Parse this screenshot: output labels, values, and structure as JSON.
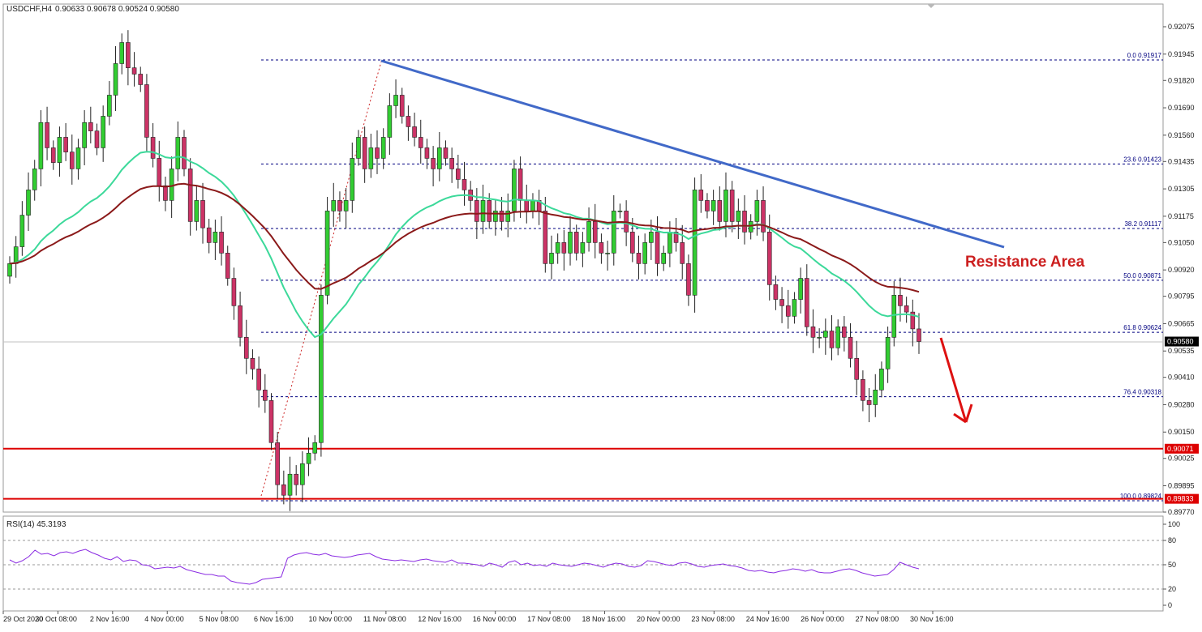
{
  "header": {
    "symbol": "USDCHF,H4",
    "ohlc": "0.90633 0.90678 0.90524 0.90580"
  },
  "annotation": {
    "resistance_label": "Resistance Area"
  },
  "colors": {
    "bull": "#32cd32",
    "bear": "#cc3366",
    "ema_fast": "#3cd99a",
    "ema_slow": "#8b1a1a",
    "trendline": "#4169c8",
    "support": "#dd0000",
    "fib": "#000080",
    "arrow": "#dd1111",
    "rsi": "#8a2be2",
    "text": "#1a1a1a",
    "resistance_text": "#cc1f1f"
  },
  "chart_data": [
    {
      "type": "candlestick",
      "symbol": "USDCHF",
      "timeframe": "H4",
      "ylim": [
        0.8977,
        0.9214
      ],
      "price_ticks": [
        "0.92075",
        "0.91945",
        "0.91820",
        "0.91690",
        "0.91560",
        "0.91435",
        "0.91305",
        "0.91175",
        "0.91050",
        "0.90920",
        "0.90795",
        "0.90665",
        "0.90535",
        "0.90410",
        "0.90280",
        "0.90150",
        "0.90025",
        "0.89895",
        "0.89770"
      ],
      "x_labels": [
        "29 Oct 2020",
        "30 Oct 08:00",
        "2 Nov 16:00",
        "4 Nov 00:00",
        "5 Nov 08:00",
        "6 Nov 16:00",
        "10 Nov 00:00",
        "11 Nov 08:00",
        "12 Nov 16:00",
        "16 Nov 00:00",
        "17 Nov 08:00",
        "18 Nov 16:00",
        "20 Nov 00:00",
        "23 Nov 08:00",
        "24 Nov 16:00",
        "26 Nov 00:00",
        "27 Nov 08:00",
        "30 Nov 16:00"
      ],
      "current_price": "0.90580",
      "support_levels": [
        {
          "label": "0.90071",
          "value": 0.90071
        },
        {
          "label": "0.89833",
          "value": 0.89833
        }
      ],
      "fibonacci": [
        {
          "label": "0.0 0.91917",
          "value": 0.91917
        },
        {
          "label": "23.6 0.91423",
          "value": 0.91423
        },
        {
          "label": "38.2 0.91117",
          "value": 0.91117
        },
        {
          "label": "50.0 0.90871",
          "value": 0.90871
        },
        {
          "label": "61.8 0.90624",
          "value": 0.90624
        },
        {
          "label": "76.4 0.90318",
          "value": 0.90318
        },
        {
          "label": "100.0 0.89824",
          "value": 0.89824
        }
      ],
      "trendline": {
        "from": [
          0.91917
        ],
        "to": [
          0.9104
        ]
      },
      "series": [
        {
          "name": "",
          "type": "candles",
          "closes": [
            0.9095,
            0.9103,
            0.9118,
            0.913,
            0.914,
            0.9162,
            0.915,
            0.9143,
            0.9155,
            0.9148,
            0.914,
            0.915,
            0.9162,
            0.9158,
            0.915,
            0.9165,
            0.9175,
            0.919,
            0.92,
            0.9188,
            0.9185,
            0.918,
            0.9155,
            0.9145,
            0.9132,
            0.9125,
            0.914,
            0.9155,
            0.914,
            0.9115,
            0.9125,
            0.9112,
            0.9105,
            0.911,
            0.91,
            0.9088,
            0.9075,
            0.906,
            0.905,
            0.9045,
            0.9035,
            0.903,
            0.901,
            0.899,
            0.8985,
            0.8995,
            0.899,
            0.9,
            0.9005,
            0.901,
            0.908,
            0.912,
            0.9125,
            0.912,
            0.9125,
            0.9145,
            0.9155,
            0.914,
            0.915,
            0.9145,
            0.9155,
            0.917,
            0.9175,
            0.9165,
            0.916,
            0.9155,
            0.915,
            0.9145,
            0.914,
            0.915,
            0.9145,
            0.914,
            0.9135,
            0.913,
            0.9125,
            0.9115,
            0.9125,
            0.9115,
            0.912,
            0.9115,
            0.912,
            0.914,
            0.9125,
            0.912,
            0.9125,
            0.912,
            0.9095,
            0.91,
            0.9105,
            0.91,
            0.911,
            0.91,
            0.9105,
            0.9115,
            0.9105,
            0.91,
            0.91,
            0.912,
            0.912,
            0.911,
            0.91,
            0.9095,
            0.9105,
            0.911,
            0.9095,
            0.91,
            0.911,
            0.9105,
            0.9095,
            0.908,
            0.913,
            0.9125,
            0.912,
            0.9125,
            0.9115,
            0.913,
            0.9115,
            0.912,
            0.911,
            0.9115,
            0.9125,
            0.911,
            0.9085,
            0.9078,
            0.9075,
            0.907,
            0.9078,
            0.9088,
            0.9065,
            0.906,
            0.906,
            0.9063,
            0.9055,
            0.9065,
            0.906,
            0.905,
            0.904,
            0.903,
            0.9028,
            0.9035,
            0.9045,
            0.906,
            0.908,
            0.9075,
            0.9072,
            0.9064,
            0.9058
          ]
        },
        {
          "name": "",
          "type": "moving-average-fast"
        },
        {
          "name": "",
          "type": "moving-average-slow"
        }
      ]
    },
    {
      "type": "line",
      "title": "RSI(14) 45.3193",
      "ylim": [
        0,
        100
      ],
      "y_ticks": [
        "100",
        "80",
        "50",
        "20",
        "0"
      ],
      "levels": [
        80,
        50,
        20
      ],
      "series": [
        {
          "name": "RSI(14)",
          "values": [
            56,
            52,
            55,
            60,
            68,
            63,
            64,
            61,
            65,
            66,
            64,
            67,
            69,
            65,
            62,
            58,
            56,
            60,
            54,
            56,
            55,
            50,
            49,
            45,
            46,
            47,
            46,
            48,
            44,
            42,
            40,
            38,
            38,
            36,
            36,
            30,
            28,
            27,
            26,
            28,
            32,
            33,
            34,
            35,
            58,
            62,
            64,
            65,
            63,
            62,
            64,
            61,
            60,
            59,
            60,
            62,
            63,
            64,
            60,
            57,
            56,
            55,
            56,
            55,
            54,
            56,
            57,
            55,
            54,
            53,
            56,
            52,
            52,
            51,
            50,
            48,
            52,
            50,
            47,
            53,
            55,
            50,
            52,
            49,
            50,
            48,
            52,
            50,
            49,
            48,
            50,
            52,
            51,
            49,
            47,
            50,
            52,
            51,
            48,
            47,
            49,
            55,
            54,
            52,
            50,
            49,
            52,
            53,
            51,
            48,
            47,
            49,
            50,
            51,
            49,
            48,
            46,
            43,
            42,
            43,
            41,
            40,
            42,
            43,
            45,
            44,
            42,
            44,
            41,
            40,
            40,
            42,
            44,
            45,
            43,
            40,
            38,
            36,
            37,
            38,
            44,
            53,
            50,
            47,
            45
          ]
        }
      ]
    }
  ]
}
